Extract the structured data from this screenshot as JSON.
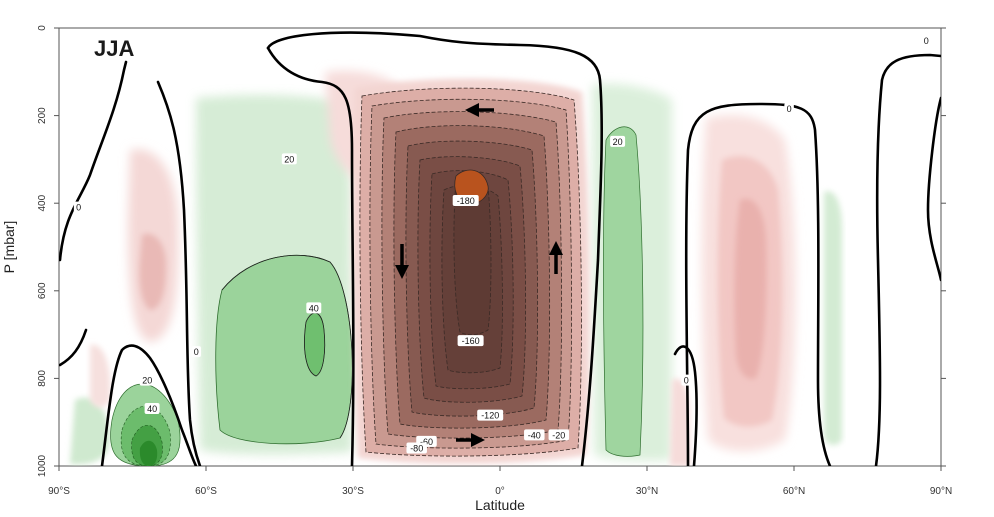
{
  "chart_data": {
    "type": "contour",
    "season_label": "JJA",
    "xlabel": "Latitude",
    "ylabel": "P [mbar]",
    "xlim": [
      -90,
      90
    ],
    "ylim": [
      1000,
      0
    ],
    "x_ticks": [
      {
        "value": -90,
        "label": "90°S"
      },
      {
        "value": -60,
        "label": "60°S"
      },
      {
        "value": -30,
        "label": "30°S"
      },
      {
        "value": 0,
        "label": "0°"
      },
      {
        "value": 30,
        "label": "30°N"
      },
      {
        "value": 60,
        "label": "60°N"
      },
      {
        "value": 90,
        "label": "90°N"
      }
    ],
    "y_ticks": [
      {
        "value": 0,
        "label": "0"
      },
      {
        "value": 200,
        "label": "200"
      },
      {
        "value": 400,
        "label": "400"
      },
      {
        "value": 600,
        "label": "600"
      },
      {
        "value": 800,
        "label": "800"
      },
      {
        "value": 1000,
        "label": "1000"
      }
    ],
    "contour_labels": [
      {
        "lat": -86,
        "p": 410,
        "text": "0"
      },
      {
        "lat": -62,
        "p": 740,
        "text": "0"
      },
      {
        "lat": 59,
        "p": 185,
        "text": "0"
      },
      {
        "lat": 38,
        "p": 805,
        "text": "0"
      },
      {
        "lat": 87,
        "p": 30,
        "text": "0"
      },
      {
        "lat": -43,
        "p": 300,
        "text": "20"
      },
      {
        "lat": 24,
        "p": 260,
        "text": "20"
      },
      {
        "lat": -72,
        "p": 805,
        "text": "20"
      },
      {
        "lat": -38,
        "p": 640,
        "text": "40"
      },
      {
        "lat": -71,
        "p": 870,
        "text": "40"
      },
      {
        "lat": -7,
        "p": 395,
        "text": "-180"
      },
      {
        "lat": -6,
        "p": 715,
        "text": "-160"
      },
      {
        "lat": -2,
        "p": 885,
        "text": "-120"
      },
      {
        "lat": -15,
        "p": 945,
        "text": "-60"
      },
      {
        "lat": -17,
        "p": 960,
        "text": "-80"
      },
      {
        "lat": 7,
        "p": 930,
        "text": "-40"
      },
      {
        "lat": 12,
        "p": 930,
        "text": "-20"
      }
    ]
  }
}
